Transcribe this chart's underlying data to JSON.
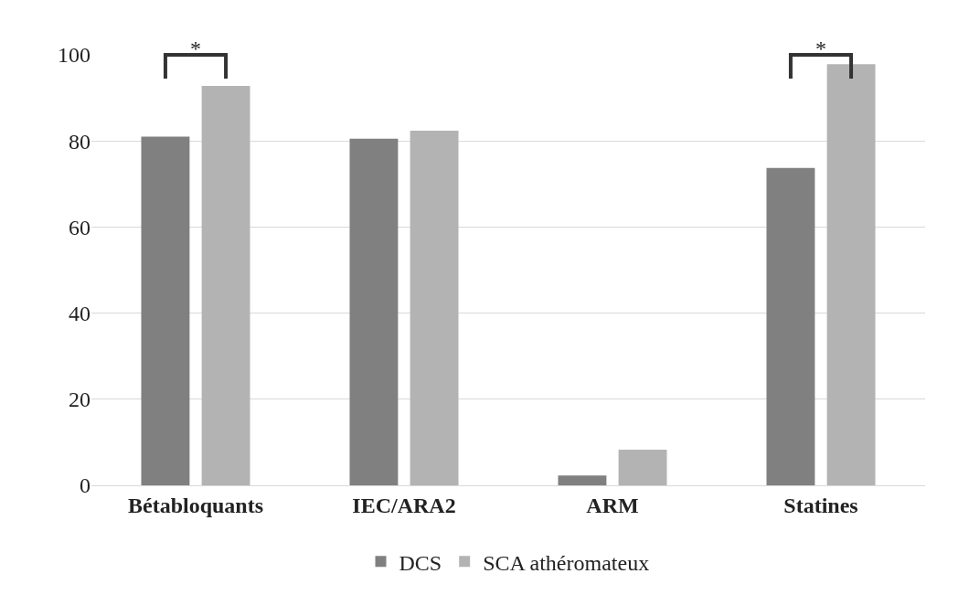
{
  "chart_data": {
    "type": "bar",
    "categories": [
      "Bétabloquants",
      "IEC/ARA2",
      "ARM",
      "Statines"
    ],
    "series": [
      {
        "name": "DCS",
        "color": "#808080",
        "values": [
          81,
          80.5,
          2.3,
          73.7
        ]
      },
      {
        "name": "SCA athéromateux",
        "color": "#b3b3b3",
        "values": [
          92.8,
          82.4,
          8.3,
          97.8
        ]
      }
    ],
    "ylim": [
      0,
      100
    ],
    "yticks": [
      0,
      20,
      40,
      60,
      80,
      100
    ],
    "grid": "y",
    "legend": "bottom",
    "annotations": [
      "*",
      "*"
    ]
  }
}
